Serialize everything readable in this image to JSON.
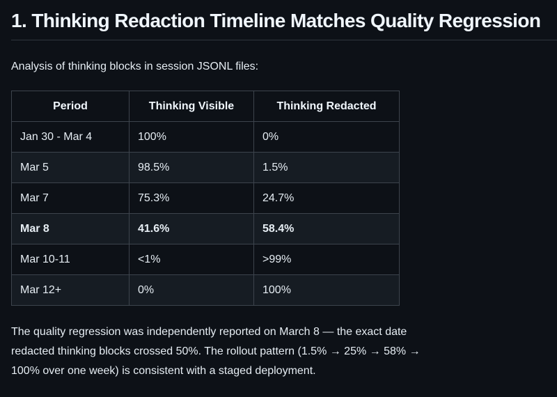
{
  "heading": "1. Thinking Redaction Timeline Matches Quality Regression",
  "intro": "Analysis of thinking blocks in session JSONL files:",
  "table": {
    "columns": [
      "Period",
      "Thinking Visible",
      "Thinking Redacted"
    ],
    "rows": [
      {
        "period": "Jan 30 - Mar 4",
        "visible": "100%",
        "redacted": "0%",
        "emphasis": false
      },
      {
        "period": "Mar 5",
        "visible": "98.5%",
        "redacted": "1.5%",
        "emphasis": false
      },
      {
        "period": "Mar 7",
        "visible": "75.3%",
        "redacted": "24.7%",
        "emphasis": false
      },
      {
        "period": "Mar 8",
        "visible": "41.6%",
        "redacted": "58.4%",
        "emphasis": true
      },
      {
        "period": "Mar 10-11",
        "visible": "<1%",
        "redacted": ">99%",
        "emphasis": false
      },
      {
        "period": "Mar 12+",
        "visible": "0%",
        "redacted": "100%",
        "emphasis": false
      }
    ]
  },
  "footer": {
    "lines": [
      "The quality regression was independently reported on March 8 — the exact date",
      "redacted thinking blocks crossed 50%. The rollout pattern (1.5% → 25% → 58% →",
      "100% over one week) is consistent with a staged deployment."
    ]
  },
  "colors": {
    "background": "#0d1117",
    "row_alternate": "#161c23",
    "table_border": "#3d444d",
    "heading_rule": "#30363d",
    "text": "#e6edf3"
  }
}
